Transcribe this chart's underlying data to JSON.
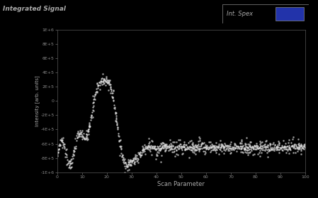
{
  "title": "Integrated Signal",
  "legend_label": "Int. Spex",
  "xlabel": "Scan Parameter",
  "ylabel": "Intensity [arb. units]",
  "xlim": [
    0,
    100
  ],
  "ylim": [
    -1000000.0,
    1000000.0
  ],
  "yticks": [
    -1000000.0,
    -800000.0,
    -600000.0,
    -400000.0,
    -200000.0,
    0,
    200000.0,
    400000.0,
    600000.0,
    800000.0,
    1000000.0
  ],
  "ytick_labels": [
    "-1E+6",
    "-8E+5",
    "-6E+5",
    "-4E+5",
    "-2E+5",
    "0",
    "2E+5",
    "4E+5",
    "6E+5",
    "8E+5",
    "1E+6"
  ],
  "xticks": [
    0,
    10,
    20,
    30,
    40,
    50,
    60,
    70,
    80,
    90,
    100
  ],
  "bg_color": "#000000",
  "outer_bg": "#000000",
  "dot_color": "#e0e0e0",
  "title_color": "#aaaaaa",
  "axis_label_color": "#aaaaaa",
  "tick_color": "#888888",
  "legend_bg": "#222222",
  "legend_box_color": "#4455aa"
}
